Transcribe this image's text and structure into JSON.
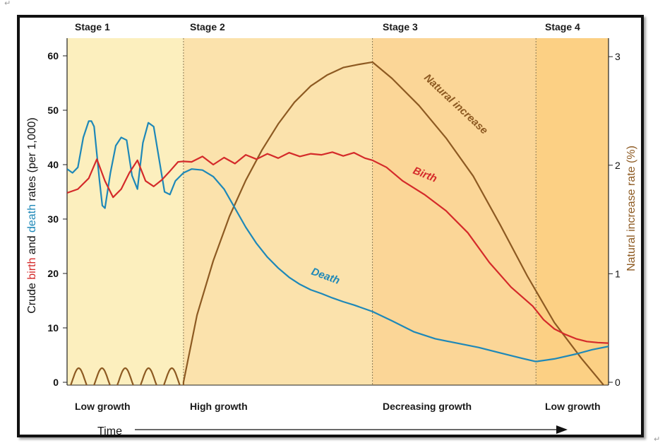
{
  "corner_marks": {
    "top_left": "↵",
    "bottom_right": "↵"
  },
  "chart_data": {
    "type": "line",
    "title": "",
    "stages": [
      {
        "name": "Stage 1",
        "label": "Low growth",
        "t_start": 0,
        "t_end": 21.5,
        "color": "#fcefbe"
      },
      {
        "name": "Stage 2",
        "label": "High growth",
        "t_start": 21.5,
        "t_end": 56.4,
        "color": "#fbe2ac"
      },
      {
        "name": "Stage 3",
        "label": "Decreasing growth",
        "t_start": 56.4,
        "t_end": 86.6,
        "color": "#fbd697"
      },
      {
        "name": "Stage 4",
        "label": "Low growth",
        "t_start": 86.6,
        "t_end": 100,
        "color": "#fcd084"
      }
    ],
    "xlabel": "Time",
    "xlim": [
      0,
      100
    ],
    "ylabel_left": {
      "prefix": "Crude ",
      "birth": "birth",
      "middle": " and ",
      "death": "death",
      "suffix": " rates (per 1,000)"
    },
    "ylim_left": [
      0,
      62
    ],
    "yticks_left": [
      0,
      10,
      20,
      30,
      40,
      50,
      60
    ],
    "ylabel_right": "Natural increase rate (%)",
    "ylim_right": [
      0,
      3.1
    ],
    "yticks_right": [
      0,
      1,
      2,
      3
    ],
    "series": [
      {
        "name": "Birth",
        "axis": "left",
        "color": "#d42a2a",
        "x": [
          0,
          2,
          4,
          5.5,
          7,
          8.5,
          10,
          11.5,
          13,
          14.5,
          16,
          17.5,
          19,
          20.5,
          21.5,
          23,
          25,
          27,
          29,
          31,
          33,
          35,
          37,
          39,
          41,
          43,
          45,
          47,
          49,
          51,
          53,
          55,
          56.4,
          59,
          62,
          66,
          70,
          74,
          78,
          82,
          86,
          88,
          90,
          92,
          94,
          96,
          98,
          100
        ],
        "values": [
          34.8,
          35.5,
          37.5,
          41.0,
          37.0,
          34.0,
          35.5,
          38.5,
          40.8,
          37.0,
          36.0,
          37.2,
          38.8,
          40.5,
          40.6,
          40.5,
          41.5,
          40.0,
          41.3,
          40.2,
          41.8,
          41.0,
          42.0,
          41.2,
          42.2,
          41.5,
          42.0,
          41.8,
          42.3,
          41.6,
          42.2,
          41.2,
          40.8,
          39.5,
          37.0,
          34.5,
          31.5,
          27.5,
          22.0,
          17.5,
          14.0,
          11.5,
          9.8,
          8.8,
          8.0,
          7.5,
          7.3,
          7.2
        ]
      },
      {
        "name": "Death",
        "axis": "left",
        "color": "#1e88b8",
        "x": [
          0,
          1,
          2,
          3,
          4,
          4.5,
          5,
          6,
          6.5,
          7,
          8,
          9,
          10,
          11,
          12,
          13,
          14,
          15,
          16,
          17,
          18,
          19,
          20,
          21.5,
          23,
          25,
          27,
          29,
          31,
          33,
          35,
          37,
          39,
          41,
          43,
          45,
          47,
          49,
          51,
          53,
          56.4,
          60,
          64,
          68,
          72,
          76,
          80,
          84,
          86.6,
          90,
          94,
          97,
          100
        ],
        "values": [
          39.2,
          38.5,
          39.5,
          45.0,
          48.0,
          48.0,
          47.0,
          37.0,
          32.5,
          32.0,
          38.5,
          43.5,
          45.0,
          44.5,
          38.0,
          35.5,
          44.0,
          47.7,
          47.0,
          41.0,
          35.0,
          34.5,
          37.0,
          38.5,
          39.2,
          39.0,
          37.8,
          35.5,
          32.0,
          28.5,
          25.5,
          23.0,
          21.0,
          19.3,
          18.0,
          17.0,
          16.3,
          15.5,
          14.8,
          14.2,
          13.0,
          11.3,
          9.3,
          8.0,
          7.2,
          6.4,
          5.4,
          4.4,
          3.8,
          4.3,
          5.2,
          6.0,
          6.6
        ]
      },
      {
        "name": "Natural increase",
        "axis": "right",
        "color": "#8d5a22",
        "x": [
          21.5,
          24,
          27,
          30,
          33,
          36,
          39,
          42,
          45,
          48,
          51,
          54,
          56.4,
          60,
          65,
          70,
          75,
          80,
          85,
          90,
          95,
          100
        ],
        "values": [
          0.0,
          0.62,
          1.12,
          1.53,
          1.86,
          2.14,
          2.38,
          2.58,
          2.73,
          2.83,
          2.9,
          2.93,
          2.95,
          2.8,
          2.55,
          2.25,
          1.9,
          1.45,
          0.98,
          0.55,
          0.22,
          -0.08
        ],
        "stage1_oscillation": {
          "cycles": 5,
          "min": -0.07,
          "max": 0.13
        }
      }
    ]
  }
}
